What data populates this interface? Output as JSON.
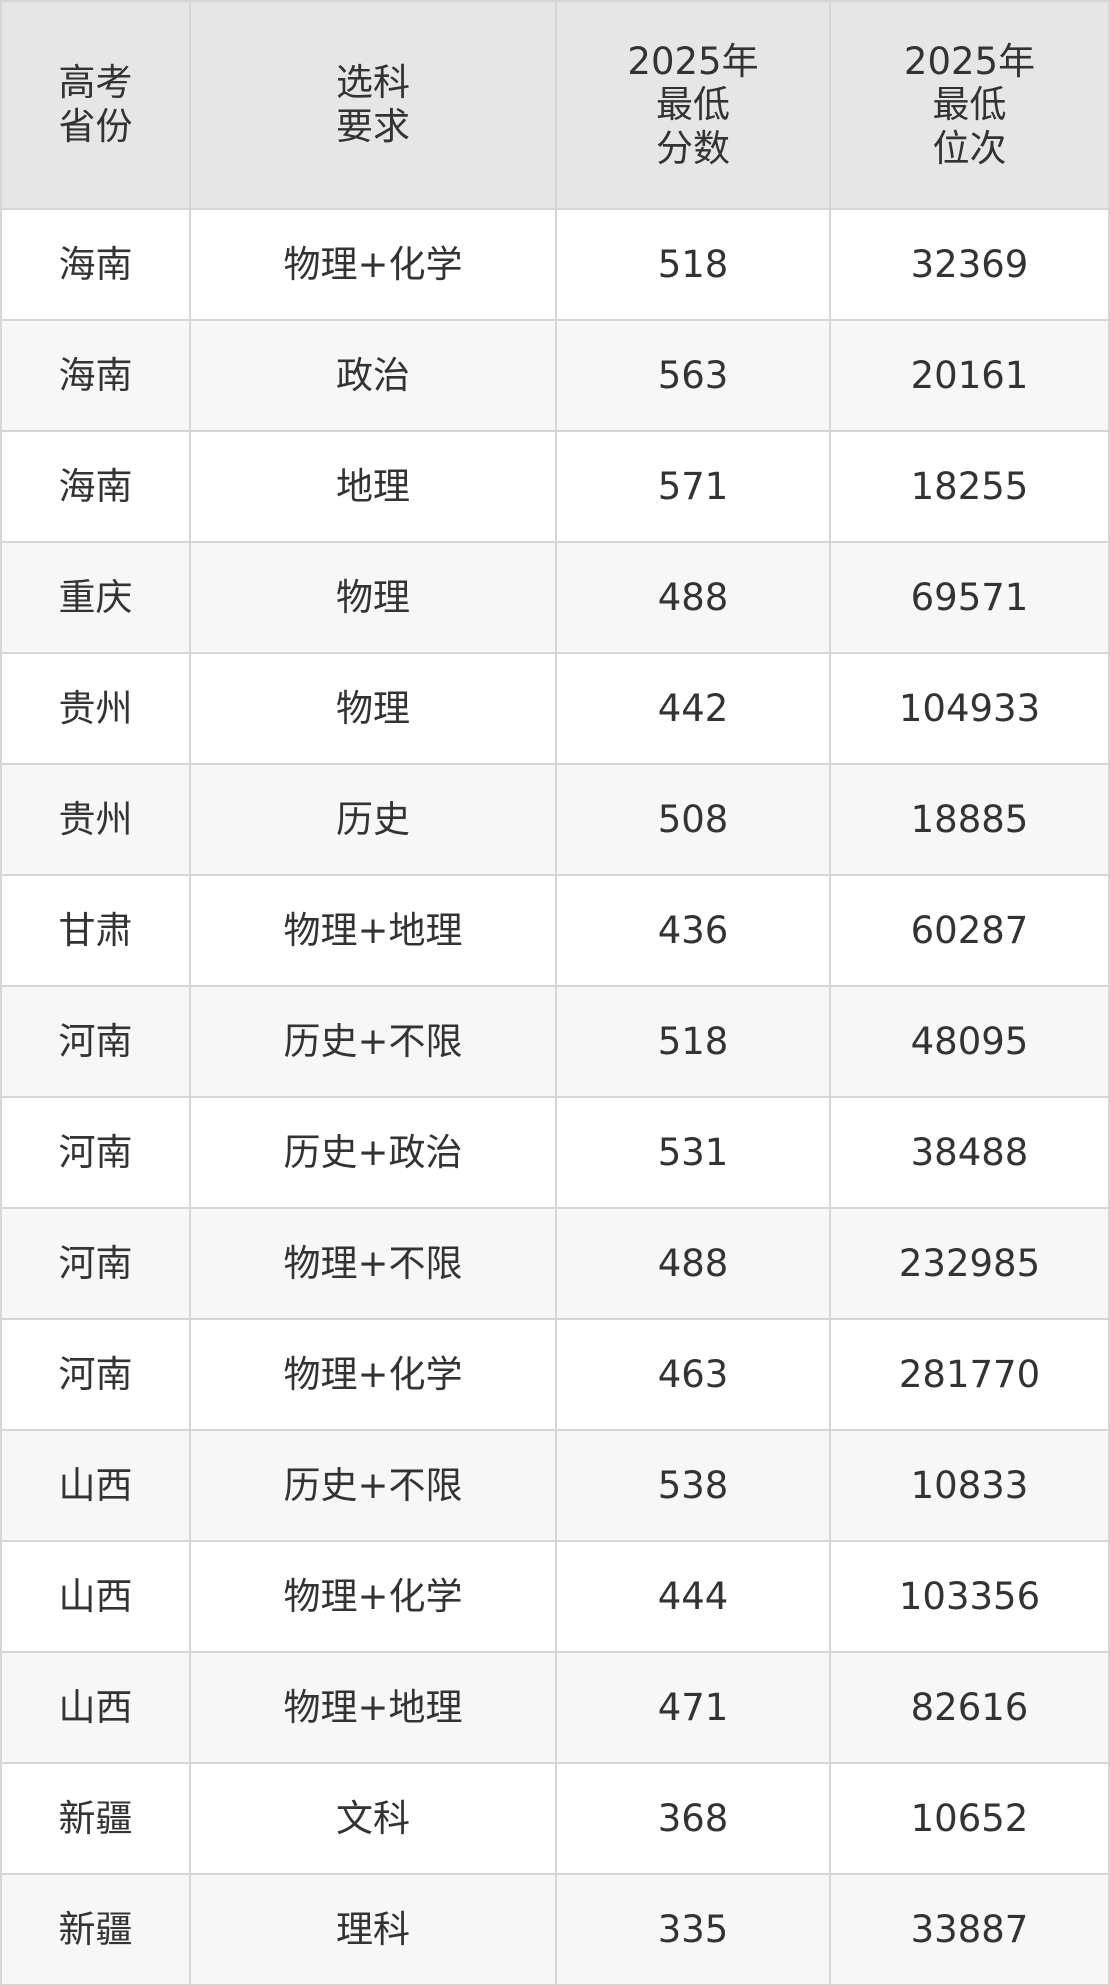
{
  "table": {
    "header": [
      [
        "高考",
        "省份"
      ],
      [
        "选科",
        "要求"
      ],
      [
        "2025年",
        "最低",
        "分数"
      ],
      [
        "2025年",
        "最低",
        "位次"
      ]
    ],
    "rows": [
      [
        "海南",
        "物理+化学",
        518,
        32369
      ],
      [
        "海南",
        "政治",
        563,
        20161
      ],
      [
        "海南",
        "地理",
        571,
        18255
      ],
      [
        "重庆",
        "物理",
        488,
        69571
      ],
      [
        "贵州",
        "物理",
        442,
        104933
      ],
      [
        "贵州",
        "历史",
        508,
        18885
      ],
      [
        "甘肃",
        "物理+地理",
        436,
        60287
      ],
      [
        "河南",
        "历史+不限",
        518,
        48095
      ],
      [
        "河南",
        "历史+政治",
        531,
        38488
      ],
      [
        "河南",
        "物理+不限",
        488,
        232985
      ],
      [
        "河南",
        "物理+化学",
        463,
        281770
      ],
      [
        "山西",
        "历史+不限",
        538,
        10833
      ],
      [
        "山西",
        "物理+化学",
        444,
        103356
      ],
      [
        "山西",
        "物理+地理",
        471,
        82616
      ],
      [
        "新疆",
        "文科",
        368,
        10652
      ],
      [
        "新疆",
        "理科",
        335,
        33887
      ]
    ]
  }
}
